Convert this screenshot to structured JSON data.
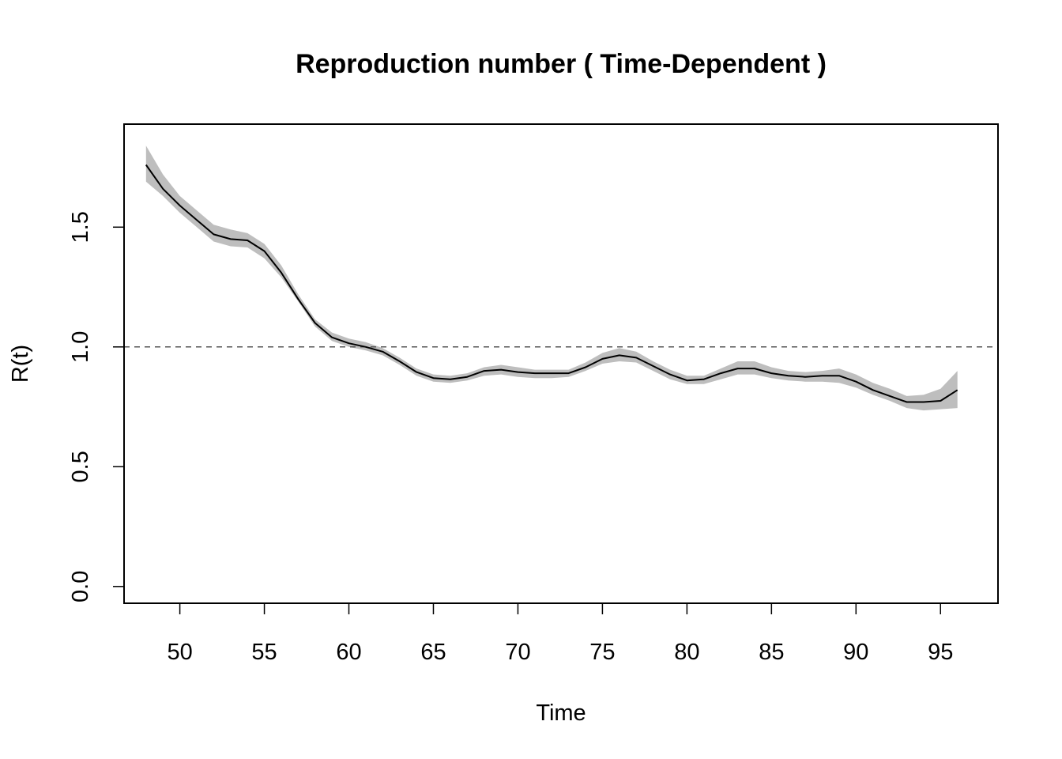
{
  "chart_data": {
    "type": "line",
    "title": "Reproduction number ( Time-Dependent )",
    "xlabel": "Time",
    "ylabel": "R(t)",
    "xlim": [
      46.7,
      98.4
    ],
    "ylim": [
      -0.07,
      1.93
    ],
    "x_ticks": [
      50,
      55,
      60,
      65,
      70,
      75,
      80,
      85,
      90,
      95
    ],
    "x_tick_labels": [
      "50",
      "55",
      "60",
      "65",
      "70",
      "75",
      "80",
      "85",
      "90",
      "95"
    ],
    "y_ticks": [
      0.0,
      0.5,
      1.0,
      1.5
    ],
    "y_tick_labels": [
      "0.0",
      "0.5",
      "1.0",
      "1.5"
    ],
    "reference_line": {
      "y": 1.0,
      "style": "dashed"
    },
    "grid": false,
    "colors": {
      "line": "#000000",
      "band": "#bebebe",
      "reference": "#555555"
    },
    "series": [
      {
        "x": [
          48,
          49,
          50,
          51,
          52,
          53,
          54,
          55,
          56,
          57,
          58,
          59,
          60,
          61,
          62,
          63,
          64,
          65,
          66,
          67,
          68,
          69,
          70,
          71,
          72,
          73,
          74,
          75,
          76,
          77,
          78,
          79,
          80,
          81,
          82,
          83,
          84,
          85,
          86,
          87,
          88,
          89,
          90,
          91,
          92,
          93,
          94,
          95,
          96
        ],
        "values": [
          1.76,
          1.66,
          1.59,
          1.53,
          1.47,
          1.45,
          1.445,
          1.4,
          1.31,
          1.2,
          1.1,
          1.04,
          1.015,
          1.0,
          0.98,
          0.94,
          0.895,
          0.87,
          0.865,
          0.875,
          0.9,
          0.905,
          0.895,
          0.89,
          0.89,
          0.89,
          0.915,
          0.95,
          0.965,
          0.955,
          0.92,
          0.885,
          0.86,
          0.865,
          0.89,
          0.91,
          0.91,
          0.89,
          0.88,
          0.875,
          0.88,
          0.88,
          0.855,
          0.82,
          0.795,
          0.77,
          0.77,
          0.775,
          0.82
        ],
        "lower": [
          1.69,
          1.63,
          1.56,
          1.5,
          1.44,
          1.42,
          1.415,
          1.37,
          1.29,
          1.19,
          1.085,
          1.025,
          1.0,
          0.985,
          0.965,
          0.925,
          0.88,
          0.855,
          0.85,
          0.86,
          0.88,
          0.885,
          0.875,
          0.87,
          0.87,
          0.875,
          0.9,
          0.93,
          0.94,
          0.935,
          0.9,
          0.865,
          0.845,
          0.845,
          0.865,
          0.885,
          0.885,
          0.87,
          0.86,
          0.855,
          0.855,
          0.85,
          0.83,
          0.8,
          0.775,
          0.745,
          0.735,
          0.74,
          0.745
        ],
        "upper": [
          1.84,
          1.72,
          1.63,
          1.57,
          1.51,
          1.49,
          1.475,
          1.43,
          1.34,
          1.22,
          1.115,
          1.06,
          1.035,
          1.02,
          0.995,
          0.955,
          0.91,
          0.885,
          0.88,
          0.89,
          0.915,
          0.925,
          0.915,
          0.905,
          0.905,
          0.905,
          0.935,
          0.975,
          0.995,
          0.98,
          0.94,
          0.905,
          0.88,
          0.88,
          0.91,
          0.94,
          0.94,
          0.915,
          0.9,
          0.895,
          0.9,
          0.91,
          0.885,
          0.85,
          0.825,
          0.795,
          0.8,
          0.825,
          0.9
        ]
      }
    ]
  }
}
